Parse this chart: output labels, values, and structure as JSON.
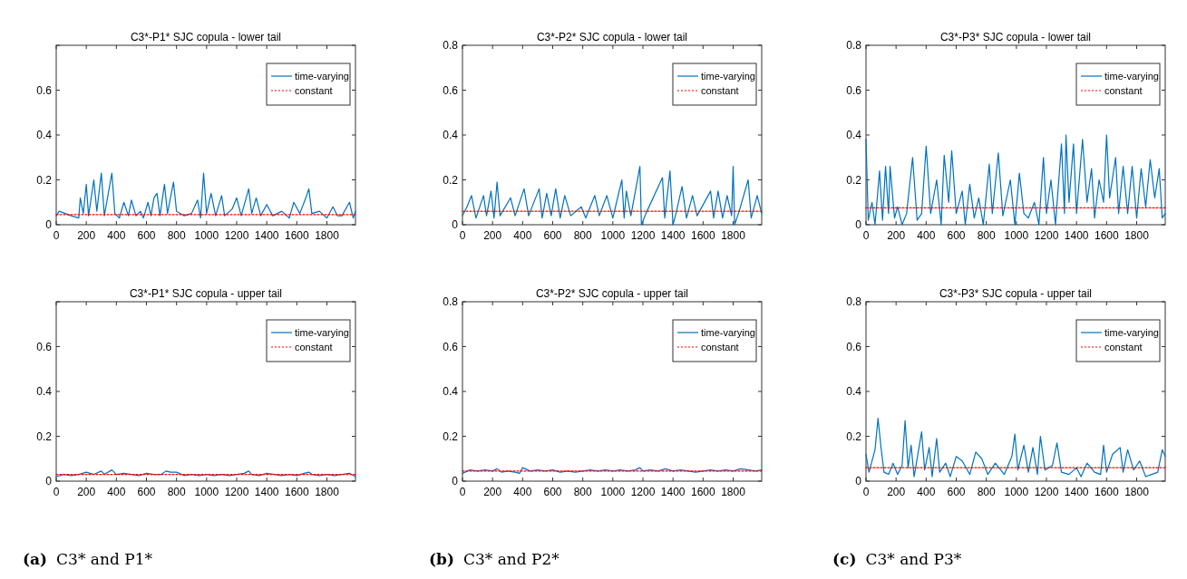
{
  "chart_data": [
    {
      "type": "line",
      "title": "C3*-P1* SJC copula - lower tail",
      "xlim": [
        0,
        1990
      ],
      "xticks": [
        0,
        200,
        400,
        600,
        800,
        1000,
        1200,
        1400,
        1600,
        1800
      ],
      "ylim": [
        0,
        0.8
      ],
      "yticks": [
        0,
        0.2,
        0.4,
        0.6,
        {
          "value": 0.8,
          "label": null
        }
      ],
      "legend": "top right",
      "grid": false,
      "series": [
        {
          "name": "time-varying",
          "color": "#0072bd",
          "line_style": "solid",
          "x": [
            0,
            20,
            60,
            100,
            150,
            160,
            180,
            200,
            215,
            250,
            270,
            300,
            320,
            370,
            390,
            420,
            450,
            480,
            500,
            530,
            560,
            580,
            610,
            630,
            650,
            670,
            690,
            720,
            740,
            780,
            800,
            850,
            900,
            940,
            960,
            980,
            1000,
            1030,
            1060,
            1100,
            1120,
            1170,
            1200,
            1230,
            1280,
            1300,
            1330,
            1360,
            1400,
            1440,
            1500,
            1550,
            1580,
            1620,
            1660,
            1680,
            1700,
            1750,
            1800,
            1840,
            1870,
            1900,
            1950,
            1975,
            1990
          ],
          "values": [
            0.04,
            0.06,
            0.05,
            0.04,
            0.03,
            0.12,
            0.05,
            0.18,
            0.04,
            0.2,
            0.06,
            0.23,
            0.04,
            0.23,
            0.05,
            0.03,
            0.1,
            0.04,
            0.11,
            0.04,
            0.06,
            0.03,
            0.1,
            0.04,
            0.12,
            0.14,
            0.04,
            0.18,
            0.05,
            0.19,
            0.06,
            0.04,
            0.05,
            0.11,
            0.03,
            0.23,
            0.05,
            0.14,
            0.04,
            0.13,
            0.04,
            0.07,
            0.12,
            0.04,
            0.16,
            0.05,
            0.12,
            0.04,
            0.09,
            0.04,
            0.06,
            0.03,
            0.1,
            0.05,
            0.12,
            0.16,
            0.05,
            0.06,
            0.03,
            0.08,
            0.04,
            0.04,
            0.1,
            0.03,
            0.06
          ]
        },
        {
          "name": "constant",
          "color": "#ff0000",
          "line_style": "dotted",
          "x": [
            0,
            1990
          ],
          "values": [
            0.045,
            0.045
          ]
        }
      ]
    },
    {
      "type": "line",
      "title": "C3*-P2* SJC copula - lower tail",
      "xlim": [
        0,
        1990
      ],
      "xticks": [
        0,
        200,
        400,
        600,
        800,
        1000,
        1200,
        1400,
        1600,
        1800
      ],
      "ylim": [
        0,
        0.8
      ],
      "yticks": [
        0,
        0.2,
        0.4,
        0.6,
        0.8
      ],
      "legend": "top right",
      "grid": false,
      "series": [
        {
          "name": "time-varying",
          "color": "#0072bd",
          "line_style": "solid",
          "x": [
            0,
            30,
            60,
            90,
            140,
            160,
            190,
            210,
            230,
            250,
            320,
            350,
            410,
            440,
            510,
            530,
            560,
            590,
            620,
            650,
            680,
            720,
            790,
            820,
            880,
            910,
            960,
            1000,
            1060,
            1075,
            1090,
            1120,
            1180,
            1190,
            1220,
            1330,
            1345,
            1380,
            1400,
            1420,
            1460,
            1490,
            1530,
            1560,
            1650,
            1670,
            1700,
            1730,
            1760,
            1790,
            1800,
            1810,
            1840,
            1900,
            1920,
            1960,
            1990
          ],
          "values": [
            0.04,
            0.08,
            0.13,
            0.03,
            0.13,
            0.04,
            0.15,
            0.03,
            0.19,
            0.04,
            0.12,
            0.04,
            0.16,
            0.04,
            0.16,
            0.03,
            0.14,
            0.04,
            0.16,
            0.03,
            0.13,
            0.04,
            0.08,
            0.03,
            0.13,
            0.04,
            0.13,
            0.03,
            0.2,
            0.03,
            0.15,
            0.04,
            0.26,
            0.0,
            0.05,
            0.21,
            0.03,
            0.24,
            0.0,
            0.05,
            0.17,
            0.03,
            0.13,
            0.04,
            0.15,
            0.03,
            0.15,
            0.03,
            0.13,
            0.04,
            0.26,
            0.0,
            0.06,
            0.2,
            0.03,
            0.13,
            0.05
          ]
        },
        {
          "name": "constant",
          "color": "#ff0000",
          "line_style": "dotted",
          "x": [
            0,
            1990
          ],
          "values": [
            0.06,
            0.06
          ]
        }
      ]
    },
    {
      "type": "line",
      "title": "C3*-P3* SJC copula - lower tail",
      "xlim": [
        0,
        1990
      ],
      "xticks": [
        0,
        200,
        400,
        600,
        800,
        1000,
        1200,
        1400,
        1600,
        1800
      ],
      "ylim": [
        0,
        0.8
      ],
      "yticks": [
        0,
        0.2,
        0.4,
        0.6,
        0.8
      ],
      "legend": "top right",
      "grid": false,
      "series": [
        {
          "name": "time-varying",
          "color": "#0072bd",
          "line_style": "solid",
          "x": [
            0,
            15,
            40,
            60,
            90,
            110,
            130,
            150,
            160,
            190,
            210,
            240,
            270,
            310,
            340,
            370,
            400,
            430,
            470,
            500,
            520,
            550,
            570,
            600,
            640,
            660,
            690,
            720,
            750,
            780,
            820,
            840,
            880,
            910,
            960,
            990,
            1020,
            1050,
            1080,
            1120,
            1150,
            1180,
            1200,
            1230,
            1260,
            1300,
            1320,
            1330,
            1350,
            1380,
            1400,
            1440,
            1470,
            1500,
            1520,
            1550,
            1580,
            1600,
            1620,
            1660,
            1680,
            1710,
            1740,
            1770,
            1800,
            1830,
            1860,
            1890,
            1920,
            1950,
            1970,
            1990
          ],
          "values": [
            0.38,
            0.02,
            0.1,
            0.0,
            0.24,
            0.02,
            0.26,
            0.05,
            0.26,
            0.03,
            0.08,
            0.0,
            0.05,
            0.3,
            0.02,
            0.05,
            0.35,
            0.05,
            0.2,
            0.0,
            0.31,
            0.1,
            0.33,
            0.05,
            0.15,
            0.0,
            0.18,
            0.03,
            0.12,
            0.0,
            0.27,
            0.05,
            0.32,
            0.04,
            0.2,
            0.0,
            0.23,
            0.05,
            0.03,
            0.1,
            0.0,
            0.3,
            0.05,
            0.2,
            0.0,
            0.36,
            0.05,
            0.4,
            0.1,
            0.36,
            0.05,
            0.38,
            0.1,
            0.25,
            0.03,
            0.2,
            0.1,
            0.4,
            0.12,
            0.3,
            0.05,
            0.26,
            0.05,
            0.26,
            0.03,
            0.25,
            0.08,
            0.29,
            0.12,
            0.25,
            0.03,
            0.05
          ]
        },
        {
          "name": "constant",
          "color": "#ff0000",
          "line_style": "dotted",
          "x": [
            0,
            1990
          ],
          "values": [
            0.075,
            0.075
          ]
        }
      ]
    },
    {
      "type": "line",
      "title": "C3*-P1* SJC copula - upper tail",
      "xlim": [
        0,
        1990
      ],
      "xticks": [
        0,
        200,
        400,
        600,
        800,
        1000,
        1200,
        1400,
        1600,
        1800
      ],
      "ylim": [
        0,
        0.8
      ],
      "yticks": [
        0,
        0.2,
        0.4,
        0.6,
        {
          "value": 0.8,
          "label": null
        }
      ],
      "legend": "top right",
      "grid": false,
      "annotations": [
        "(a) C3* and P1*"
      ],
      "series": [
        {
          "name": "time-varying",
          "color": "#0072bd",
          "line_style": "solid",
          "x": [
            0,
            50,
            100,
            150,
            200,
            250,
            300,
            320,
            370,
            400,
            450,
            500,
            550,
            600,
            650,
            700,
            730,
            760,
            800,
            850,
            900,
            950,
            1000,
            1050,
            1100,
            1150,
            1200,
            1250,
            1280,
            1300,
            1350,
            1400,
            1450,
            1500,
            1550,
            1600,
            1650,
            1680,
            1700,
            1750,
            1800,
            1850,
            1900,
            1950,
            1990
          ],
          "values": [
            0.02,
            0.03,
            0.025,
            0.03,
            0.04,
            0.03,
            0.045,
            0.03,
            0.05,
            0.03,
            0.035,
            0.03,
            0.025,
            0.035,
            0.03,
            0.03,
            0.045,
            0.04,
            0.04,
            0.025,
            0.03,
            0.025,
            0.03,
            0.025,
            0.03,
            0.025,
            0.03,
            0.035,
            0.045,
            0.03,
            0.025,
            0.035,
            0.03,
            0.025,
            0.03,
            0.025,
            0.035,
            0.04,
            0.03,
            0.025,
            0.03,
            0.025,
            0.03,
            0.035,
            0.02
          ]
        },
        {
          "name": "constant",
          "color": "#ff0000",
          "line_style": "dotted",
          "x": [
            0,
            1990
          ],
          "values": [
            0.03,
            0.03
          ]
        }
      ]
    },
    {
      "type": "line",
      "title": "C3*-P2* SJC copula - upper tail",
      "xlim": [
        0,
        1990
      ],
      "xticks": [
        0,
        200,
        400,
        600,
        800,
        1000,
        1200,
        1400,
        1600,
        1800
      ],
      "ylim": [
        0,
        0.8
      ],
      "yticks": [
        0,
        0.2,
        0.4,
        0.6,
        0.8
      ],
      "legend": "top right",
      "grid": false,
      "annotations": [
        "(b) C3* and P2*"
      ],
      "series": [
        {
          "name": "time-varying",
          "color": "#0072bd",
          "line_style": "solid",
          "x": [
            0,
            50,
            100,
            150,
            200,
            230,
            260,
            300,
            350,
            380,
            400,
            450,
            500,
            550,
            600,
            650,
            700,
            750,
            800,
            850,
            900,
            950,
            1000,
            1050,
            1100,
            1150,
            1180,
            1200,
            1250,
            1300,
            1350,
            1400,
            1450,
            1500,
            1550,
            1600,
            1650,
            1700,
            1750,
            1800,
            1850,
            1900,
            1950,
            1990
          ],
          "values": [
            0.035,
            0.05,
            0.045,
            0.05,
            0.045,
            0.055,
            0.04,
            0.045,
            0.04,
            0.035,
            0.06,
            0.045,
            0.05,
            0.045,
            0.05,
            0.04,
            0.045,
            0.04,
            0.045,
            0.05,
            0.045,
            0.05,
            0.045,
            0.05,
            0.045,
            0.05,
            0.06,
            0.045,
            0.05,
            0.045,
            0.055,
            0.045,
            0.05,
            0.045,
            0.04,
            0.045,
            0.05,
            0.045,
            0.05,
            0.045,
            0.055,
            0.05,
            0.045,
            0.05
          ]
        },
        {
          "name": "constant",
          "color": "#ff0000",
          "line_style": "dotted",
          "x": [
            0,
            1990
          ],
          "values": [
            0.045,
            0.045
          ]
        }
      ]
    },
    {
      "type": "line",
      "title": "C3*-P3* SJC copula - upper tail",
      "xlim": [
        0,
        1990
      ],
      "xticks": [
        0,
        200,
        400,
        600,
        800,
        1000,
        1200,
        1400,
        1600,
        1800
      ],
      "ylim": [
        0,
        0.8
      ],
      "yticks": [
        0,
        0.2,
        0.4,
        0.6,
        0.8
      ],
      "legend": "top right",
      "grid": false,
      "annotations": [
        "(c) C3* and P3*"
      ],
      "series": [
        {
          "name": "time-varying",
          "color": "#0072bd",
          "line_style": "solid",
          "x": [
            0,
            20,
            60,
            80,
            100,
            120,
            150,
            180,
            210,
            240,
            260,
            280,
            300,
            320,
            370,
            390,
            420,
            440,
            470,
            490,
            530,
            560,
            600,
            640,
            690,
            730,
            770,
            810,
            860,
            920,
            970,
            990,
            1010,
            1050,
            1080,
            1110,
            1140,
            1160,
            1190,
            1240,
            1270,
            1300,
            1350,
            1400,
            1430,
            1470,
            1520,
            1560,
            1580,
            1600,
            1640,
            1690,
            1710,
            1740,
            1780,
            1820,
            1860,
            1900,
            1940,
            1970,
            1990
          ],
          "values": [
            0.12,
            0.04,
            0.14,
            0.28,
            0.15,
            0.04,
            0.03,
            0.08,
            0.03,
            0.07,
            0.27,
            0.06,
            0.16,
            0.02,
            0.22,
            0.05,
            0.15,
            0.02,
            0.19,
            0.04,
            0.08,
            0.02,
            0.11,
            0.09,
            0.03,
            0.13,
            0.1,
            0.03,
            0.08,
            0.03,
            0.11,
            0.21,
            0.05,
            0.16,
            0.04,
            0.15,
            0.03,
            0.2,
            0.05,
            0.07,
            0.17,
            0.04,
            0.03,
            0.06,
            0.02,
            0.08,
            0.04,
            0.03,
            0.16,
            0.04,
            0.12,
            0.15,
            0.04,
            0.14,
            0.05,
            0.09,
            0.02,
            0.03,
            0.04,
            0.14,
            0.11
          ]
        },
        {
          "name": "constant",
          "color": "#ff0000",
          "line_style": "dotted",
          "x": [
            0,
            1990
          ],
          "values": [
            0.06,
            0.06
          ]
        }
      ]
    }
  ]
}
